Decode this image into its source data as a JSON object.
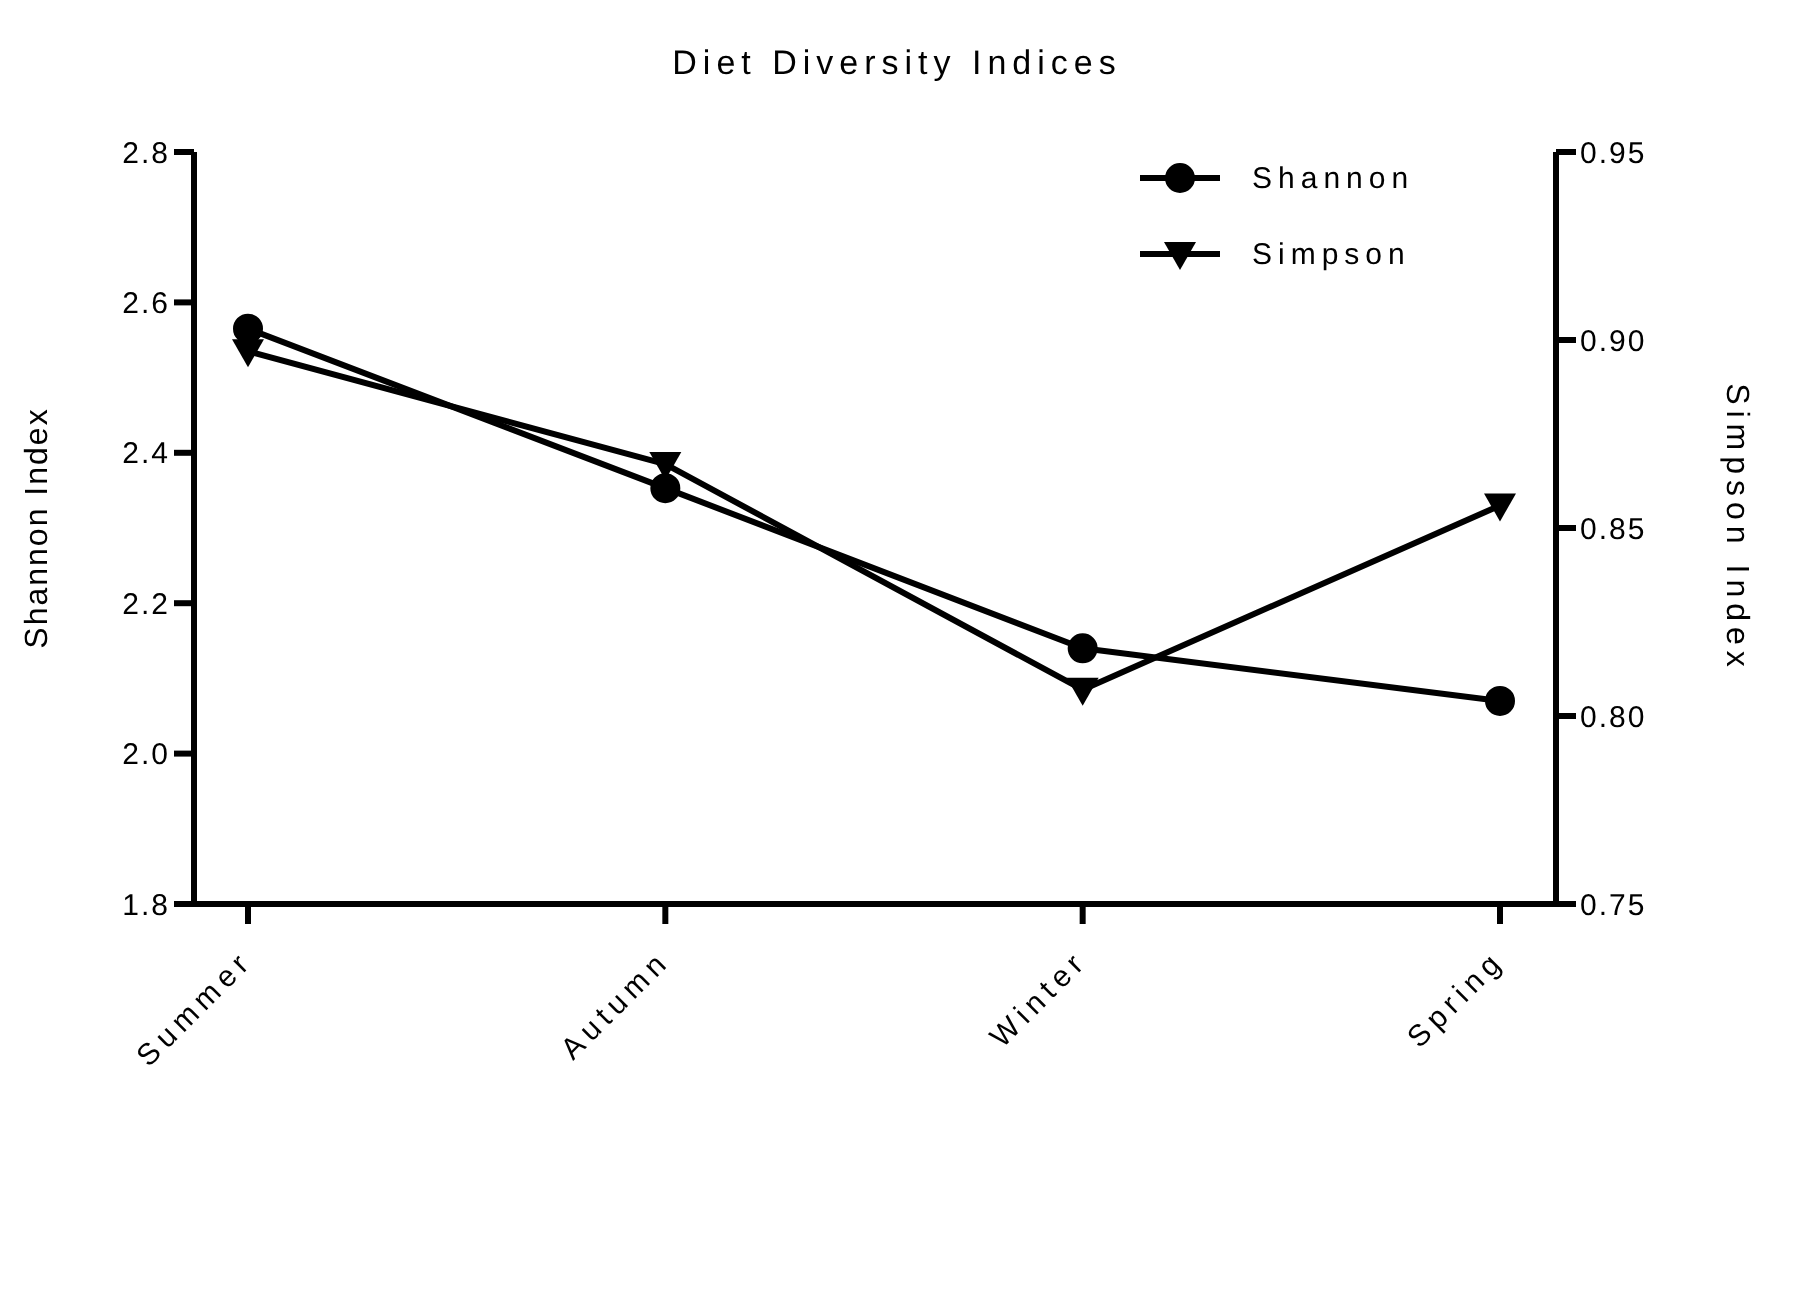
{
  "chart_data": {
    "type": "line",
    "title": "Diet Diversity Indices",
    "categories": [
      "Summer",
      "Autumn",
      "Winter",
      "Spring"
    ],
    "ylabel": "Shannon Index",
    "y2label": "Simpson Index",
    "ylim": [
      1.8,
      2.8
    ],
    "yticks": [
      {
        "value": 1.8,
        "label": "1.8"
      },
      {
        "value": 2.0,
        "label": "2.0"
      },
      {
        "value": 2.2,
        "label": "2.2"
      },
      {
        "value": 2.4,
        "label": "2.4"
      },
      {
        "value": 2.6,
        "label": "2.6"
      },
      {
        "value": 2.8,
        "label": "2.8"
      }
    ],
    "y2lim": [
      0.75,
      0.95
    ],
    "y2ticks": [
      {
        "value": 0.75,
        "label": "0.75"
      },
      {
        "value": 0.8,
        "label": "0.80"
      },
      {
        "value": 0.85,
        "label": "0.85"
      },
      {
        "value": 0.9,
        "label": "0.90"
      },
      {
        "value": 0.95,
        "label": "0.95"
      }
    ],
    "grid": false,
    "legend": "top right",
    "series": [
      {
        "name": "Shannon",
        "color": "#000000",
        "marker": "circle",
        "values": [
          2.565,
          2.353,
          2.14,
          2.07
        ]
      },
      {
        "name": "Simpson",
        "color": "#000000",
        "marker": "triangle",
        "axis": "y2",
        "values": [
          0.897,
          0.867,
          0.807,
          0.856
        ]
      }
    ]
  }
}
